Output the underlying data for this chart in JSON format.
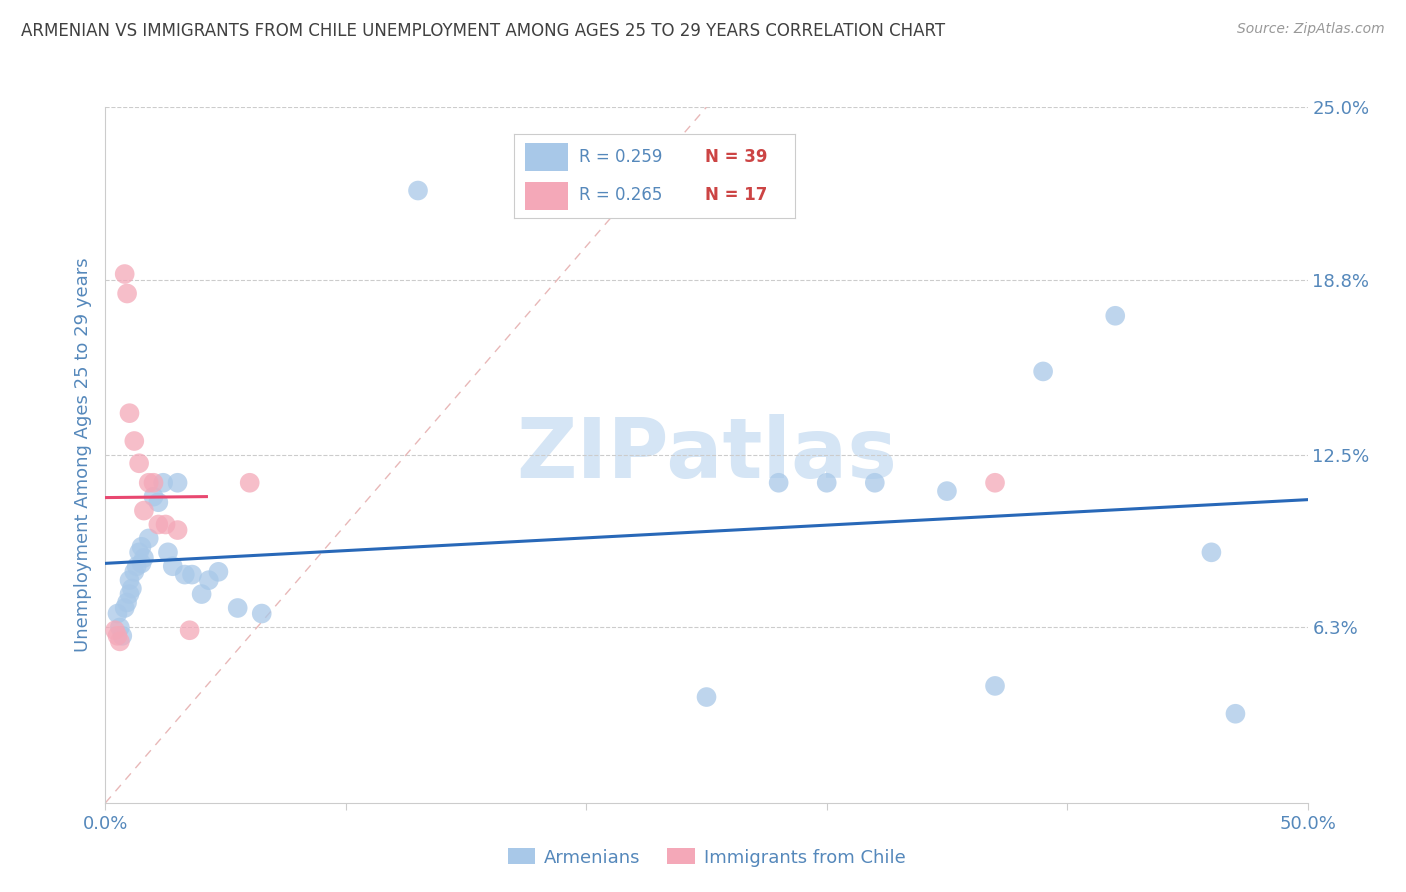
{
  "title": "ARMENIAN VS IMMIGRANTS FROM CHILE UNEMPLOYMENT AMONG AGES 25 TO 29 YEARS CORRELATION CHART",
  "source": "Source: ZipAtlas.com",
  "ylabel": "Unemployment Among Ages 25 to 29 years",
  "xlim": [
    0.0,
    0.5
  ],
  "ylim": [
    0.0,
    0.25
  ],
  "xtick_positions": [
    0.0,
    0.1,
    0.2,
    0.3,
    0.4,
    0.5
  ],
  "xticklabels": [
    "0.0%",
    "",
    "",
    "",
    "",
    "50.0%"
  ],
  "yticks_right": [
    0.063,
    0.125,
    0.188,
    0.25
  ],
  "ytick_right_labels": [
    "6.3%",
    "12.5%",
    "18.8%",
    "25.0%"
  ],
  "armenian_color": "#a8c8e8",
  "chile_color": "#f4a8b8",
  "armenian_line_color": "#2868b8",
  "chile_line_color": "#e84870",
  "diag_line_color": "#e8b8b8",
  "grid_color": "#cccccc",
  "axis_color": "#5588bb",
  "watermark_color": "#d5e5f5",
  "title_color": "#404040",
  "source_color": "#999999",
  "R_armenian": "R = 0.259",
  "N_armenian": "N = 39",
  "R_chile": "R = 0.265",
  "N_chile": "N = 17",
  "armenians_label": "Armenians",
  "chile_label": "Immigrants from Chile",
  "armenians_x": [
    0.005,
    0.006,
    0.007,
    0.008,
    0.009,
    0.01,
    0.01,
    0.011,
    0.012,
    0.013,
    0.014,
    0.015,
    0.015,
    0.016,
    0.018,
    0.02,
    0.022,
    0.024,
    0.026,
    0.028,
    0.03,
    0.033,
    0.036,
    0.04,
    0.043,
    0.047,
    0.055,
    0.065,
    0.13,
    0.25,
    0.3,
    0.35,
    0.37,
    0.39,
    0.42,
    0.46,
    0.47,
    0.28,
    0.32
  ],
  "armenians_y": [
    0.068,
    0.063,
    0.06,
    0.07,
    0.072,
    0.075,
    0.08,
    0.077,
    0.083,
    0.085,
    0.09,
    0.092,
    0.086,
    0.088,
    0.095,
    0.11,
    0.108,
    0.115,
    0.09,
    0.085,
    0.115,
    0.082,
    0.082,
    0.075,
    0.08,
    0.083,
    0.07,
    0.068,
    0.22,
    0.038,
    0.115,
    0.112,
    0.042,
    0.155,
    0.175,
    0.09,
    0.032,
    0.115,
    0.115
  ],
  "chile_x": [
    0.004,
    0.005,
    0.006,
    0.008,
    0.009,
    0.01,
    0.012,
    0.014,
    0.016,
    0.018,
    0.02,
    0.022,
    0.025,
    0.03,
    0.035,
    0.06,
    0.37
  ],
  "chile_y": [
    0.062,
    0.06,
    0.058,
    0.19,
    0.183,
    0.14,
    0.13,
    0.122,
    0.105,
    0.115,
    0.115,
    0.1,
    0.1,
    0.098,
    0.062,
    0.115,
    0.115
  ]
}
